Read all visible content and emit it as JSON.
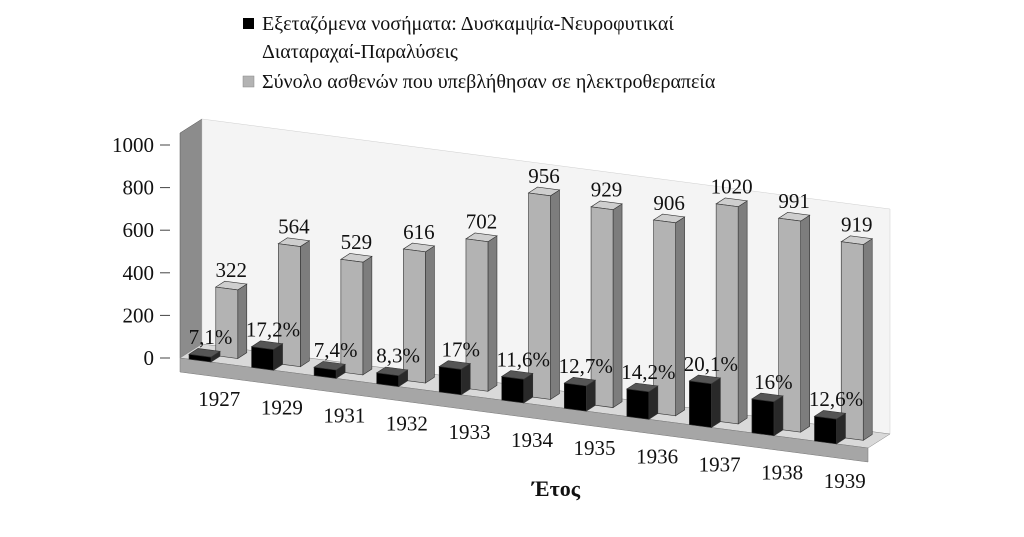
{
  "chart_data": {
    "type": "bar",
    "categories": [
      "1927",
      "1929",
      "1931",
      "1932",
      "1933",
      "1934",
      "1935",
      "1936",
      "1937",
      "1938",
      "1939"
    ],
    "series": [
      {
        "name": "Εξεταζόμενα νοσήματα: Δυσκαμψία-Νευροφυτικαί Διαταραχαί-Παραλύσεις",
        "values": [
          23,
          97,
          39,
          51,
          119,
          111,
          118,
          129,
          205,
          159,
          116
        ],
        "labels": [
          "7,1%",
          "17,2%",
          "7,4%",
          "8,3%",
          "17%",
          "11,6%",
          "12,7%",
          "14,2%",
          "20,1%",
          "16%",
          "12,6%"
        ],
        "color": "#000000"
      },
      {
        "name": "Σύνολο ασθενών που υπεβλήθησαν σε ηλεκτροθεραπεία",
        "values": [
          322,
          564,
          529,
          616,
          702,
          956,
          929,
          906,
          1020,
          991,
          919
        ],
        "labels": [
          "322",
          "564",
          "529",
          "616",
          "702",
          "956",
          "929",
          "906",
          "1020",
          "991",
          "919"
        ],
        "color": "#b3b3b3"
      }
    ],
    "legend": {
      "position": "top",
      "entries": [
        {
          "line1": "Εξεταζόμενα νοσήματα: Δυσκαμψία-Νευροφυτικαί",
          "line2": "Διαταραχαί-Παραλύσεις"
        },
        {
          "line1": "Σύνολο ασθενών που υπεβλήθησαν σε ηλεκτροθεραπεία",
          "line2": ""
        }
      ]
    },
    "y_ticks": [
      "0",
      "200",
      "400",
      "600",
      "800",
      "1000"
    ],
    "ylim": [
      0,
      1000
    ],
    "xlabel": "Έτος",
    "ylabel": "",
    "style": "3d-column",
    "grid": false
  }
}
